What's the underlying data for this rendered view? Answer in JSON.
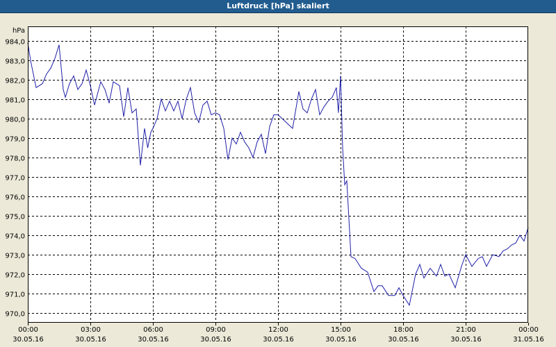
{
  "window": {
    "title": "Luftdruck [hPa] skaliert"
  },
  "colors": {
    "titlebar": "#225c8f",
    "background": "#ece9d8",
    "plot_background": "#ffffff",
    "line": "#1f1fa8",
    "grid": "#000000"
  },
  "chart_data": {
    "type": "line",
    "title": "Luftdruck [hPa] skaliert",
    "ylabel": "hPa",
    "xlabel": "",
    "ylim": [
      969.8,
      984.4
    ],
    "xlim": [
      0,
      24
    ],
    "grid": true,
    "y_ticks": [
      970,
      971,
      972,
      973,
      974,
      975,
      976,
      977,
      978,
      979,
      980,
      981,
      982,
      983,
      984
    ],
    "y_tick_labels": [
      "970,0",
      "971,0",
      "972,0",
      "973,0",
      "974,0",
      "975,0",
      "976,0",
      "977,0",
      "978,0",
      "979,0",
      "980,0",
      "981,0",
      "982,0",
      "983,0",
      "984,0"
    ],
    "x_ticks": [
      {
        "h": 0,
        "time": "00:00",
        "date": "30.05.16"
      },
      {
        "h": 3,
        "time": "03:00",
        "date": "30.05.16"
      },
      {
        "h": 6,
        "time": "06:00",
        "date": "30.05.16"
      },
      {
        "h": 9,
        "time": "09:00",
        "date": "30.05.16"
      },
      {
        "h": 12,
        "time": "12:00",
        "date": "30.05.16"
      },
      {
        "h": 15,
        "time": "15:00",
        "date": "30.05.16"
      },
      {
        "h": 18,
        "time": "18:00",
        "date": "30.05.16"
      },
      {
        "h": 21,
        "time": "21:00",
        "date": "30.05.16"
      },
      {
        "h": 24,
        "time": "00:00",
        "date": "31.05.16"
      }
    ],
    "series": [
      {
        "x": [
          0,
          0.15,
          0.4,
          0.7,
          0.9,
          1.1,
          1.3,
          1.5,
          1.7,
          1.8,
          2.0,
          2.2,
          2.4,
          2.6,
          2.8,
          3.0,
          3.2,
          3.5,
          3.7,
          3.9,
          4.1,
          4.4,
          4.6,
          4.8,
          5.0,
          5.2,
          5.4,
          5.6,
          5.75,
          5.9,
          6.0,
          6.2,
          6.4,
          6.6,
          6.8,
          7.0,
          7.2,
          7.4,
          7.6,
          7.8,
          8.0,
          8.2,
          8.4,
          8.6,
          8.8,
          9.0,
          9.2,
          9.4,
          9.6,
          9.8,
          10.0,
          10.2,
          10.4,
          10.6,
          10.8,
          11.0,
          11.2,
          11.4,
          11.6,
          11.8,
          12.0,
          12.3,
          12.5,
          12.7,
          13.0,
          13.2,
          13.4,
          13.6,
          13.8,
          14.0,
          14.2,
          14.4,
          14.6,
          14.8,
          14.9,
          15.0,
          15.1,
          15.2,
          15.3,
          15.5,
          15.7,
          16.0,
          16.3,
          16.6,
          16.8,
          17.0,
          17.3,
          17.6,
          17.8,
          18.0,
          18.3,
          18.6,
          18.8,
          19.0,
          19.3,
          19.6,
          19.8,
          20.0,
          20.2,
          20.5,
          20.8,
          21.0,
          21.3,
          21.6,
          21.8,
          22.0,
          22.3,
          22.6,
          22.8,
          23.0,
          23.2,
          23.4,
          23.6,
          23.8,
          24.0
        ],
        "y": [
          983.9,
          982.9,
          981.6,
          981.8,
          982.3,
          982.6,
          983.1,
          983.8,
          981.5,
          981.1,
          981.8,
          982.2,
          981.5,
          981.8,
          982.5,
          981.7,
          980.7,
          981.9,
          981.5,
          980.8,
          981.9,
          981.7,
          980.1,
          981.6,
          980.3,
          980.5,
          977.6,
          979.5,
          978.5,
          979.3,
          979.5,
          980.0,
          981.0,
          980.4,
          980.9,
          980.4,
          980.9,
          980.0,
          981.0,
          981.6,
          980.3,
          979.8,
          980.7,
          980.9,
          980.2,
          980.3,
          980.2,
          979.5,
          977.9,
          979.0,
          978.7,
          979.3,
          978.8,
          978.5,
          978.0,
          978.8,
          979.2,
          978.2,
          979.6,
          980.2,
          980.2,
          979.9,
          979.7,
          979.5,
          981.4,
          980.5,
          980.3,
          981.0,
          981.5,
          980.2,
          980.6,
          980.9,
          981.1,
          981.6,
          980.3,
          982.2,
          978.5,
          976.6,
          976.8,
          972.9,
          972.8,
          972.3,
          972.1,
          971.1,
          971.4,
          971.4,
          970.9,
          970.9,
          971.3,
          970.9,
          970.4,
          972.0,
          972.5,
          971.8,
          972.3,
          971.9,
          972.5,
          971.9,
          972.0,
          971.3,
          972.4,
          973.0,
          972.4,
          972.8,
          972.9,
          972.4,
          973.0,
          972.9,
          973.2,
          973.3,
          973.5,
          973.6,
          974.0,
          973.7,
          974.4
        ]
      }
    ]
  }
}
